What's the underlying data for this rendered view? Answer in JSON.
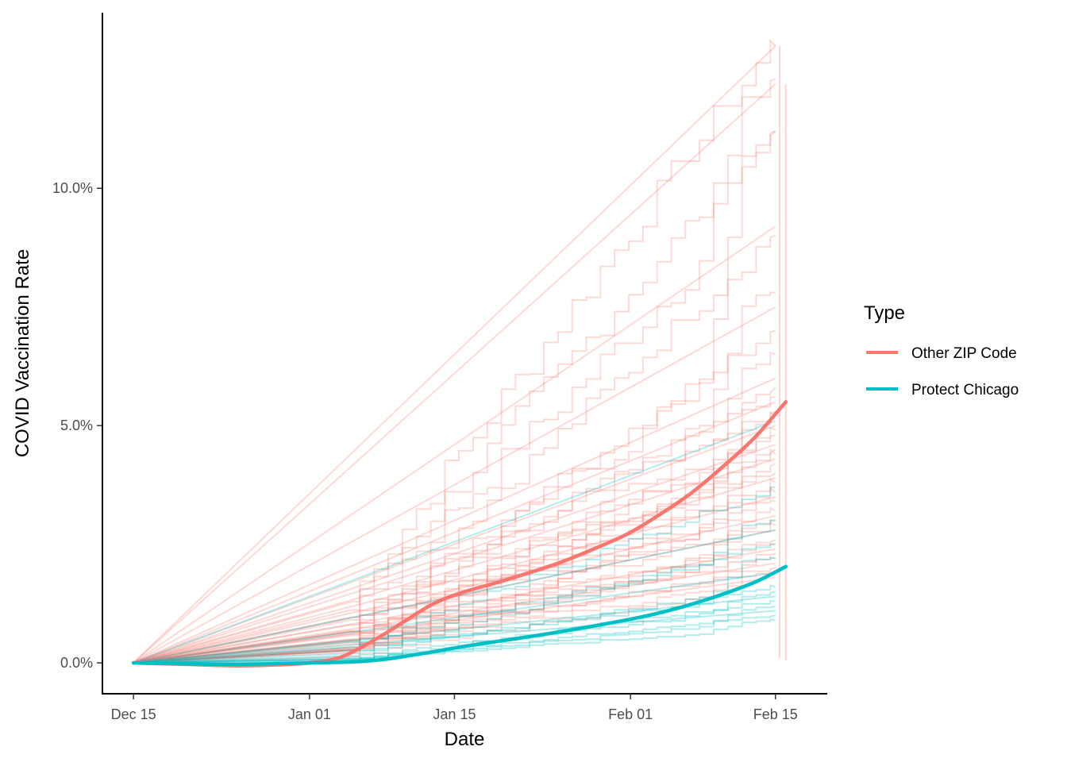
{
  "chart_data": {
    "type": "line",
    "title": "",
    "xlabel": "Date",
    "ylabel": "COVID Vaccination Rate",
    "x_ticks": [
      {
        "date": "2020-12-15",
        "label": "Dec 15"
      },
      {
        "date": "2021-01-01",
        "label": "Jan 01"
      },
      {
        "date": "2021-01-15",
        "label": "Jan 15"
      },
      {
        "date": "2021-02-01",
        "label": "Feb 01"
      },
      {
        "date": "2021-02-15",
        "label": "Feb 15"
      }
    ],
    "y_ticks": [
      {
        "value": 0.0,
        "label": "0.0%"
      },
      {
        "value": 5.0,
        "label": "5.0%"
      },
      {
        "value": 10.0,
        "label": "10.0%"
      }
    ],
    "xlim": [
      "2020-12-12",
      "2021-02-20"
    ],
    "ylim": [
      -0.65,
      13.7
    ],
    "grid": false,
    "legend": {
      "title": "Type",
      "placement": "right",
      "entries": [
        {
          "label": "Other ZIP Code",
          "color": "#F8766D"
        },
        {
          "label": "Protect Chicago",
          "color": "#00BFC4"
        }
      ]
    },
    "smooth_series": [
      {
        "type": "Other ZIP Code",
        "color": "#F8766D",
        "points": [
          [
            "2020-12-15",
            0.0
          ],
          [
            "2020-12-20",
            -0.03
          ],
          [
            "2020-12-25",
            -0.06
          ],
          [
            "2020-12-29",
            -0.04
          ],
          [
            "2021-01-01",
            0.0
          ],
          [
            "2021-01-04",
            0.12
          ],
          [
            "2021-01-07",
            0.45
          ],
          [
            "2021-01-10",
            0.85
          ],
          [
            "2021-01-13",
            1.25
          ],
          [
            "2021-01-16",
            1.5
          ],
          [
            "2021-01-20",
            1.75
          ],
          [
            "2021-01-25",
            2.1
          ],
          [
            "2021-01-29",
            2.45
          ],
          [
            "2021-02-01",
            2.75
          ],
          [
            "2021-02-04",
            3.15
          ],
          [
            "2021-02-07",
            3.6
          ],
          [
            "2021-02-10",
            4.15
          ],
          [
            "2021-02-13",
            4.75
          ],
          [
            "2021-02-16",
            5.5
          ]
        ]
      },
      {
        "type": "Protect Chicago",
        "color": "#00BFC4",
        "points": [
          [
            "2020-12-15",
            0.0
          ],
          [
            "2020-12-20",
            -0.02
          ],
          [
            "2020-12-25",
            -0.03
          ],
          [
            "2021-01-01",
            0.0
          ],
          [
            "2021-01-05",
            0.02
          ],
          [
            "2021-01-08",
            0.07
          ],
          [
            "2021-01-12",
            0.2
          ],
          [
            "2021-01-16",
            0.35
          ],
          [
            "2021-01-20",
            0.48
          ],
          [
            "2021-01-25",
            0.65
          ],
          [
            "2021-02-01",
            0.92
          ],
          [
            "2021-02-05",
            1.12
          ],
          [
            "2021-02-09",
            1.38
          ],
          [
            "2021-02-13",
            1.7
          ],
          [
            "2021-02-16",
            2.03
          ]
        ]
      }
    ],
    "zip_lines": {
      "other_final_rates": [
        13.0,
        13.0,
        12.3,
        12.2,
        11.2,
        11.2,
        9.2,
        9.0,
        7.8,
        7.5,
        7.0,
        6.5,
        6.0,
        5.8,
        5.6,
        5.5,
        5.3,
        5.2,
        5.0,
        4.9,
        4.8,
        4.6,
        4.5,
        4.4,
        4.3,
        4.2,
        4.0,
        3.9,
        3.8,
        3.6,
        3.5,
        3.4,
        3.2,
        3.1,
        3.0,
        2.9,
        2.8,
        2.6,
        2.5,
        2.4,
        2.3,
        2.2,
        2.1,
        2.0,
        1.9,
        1.8
      ],
      "protect_final_rates": [
        5.1,
        3.7,
        3.0,
        2.8,
        2.5,
        2.2,
        1.9,
        1.6,
        1.5,
        1.4,
        1.3,
        1.2,
        1.1,
        1.0,
        0.9
      ],
      "step_start_date": "2021-01-05",
      "late_jump_date": "2021-02-08"
    }
  }
}
